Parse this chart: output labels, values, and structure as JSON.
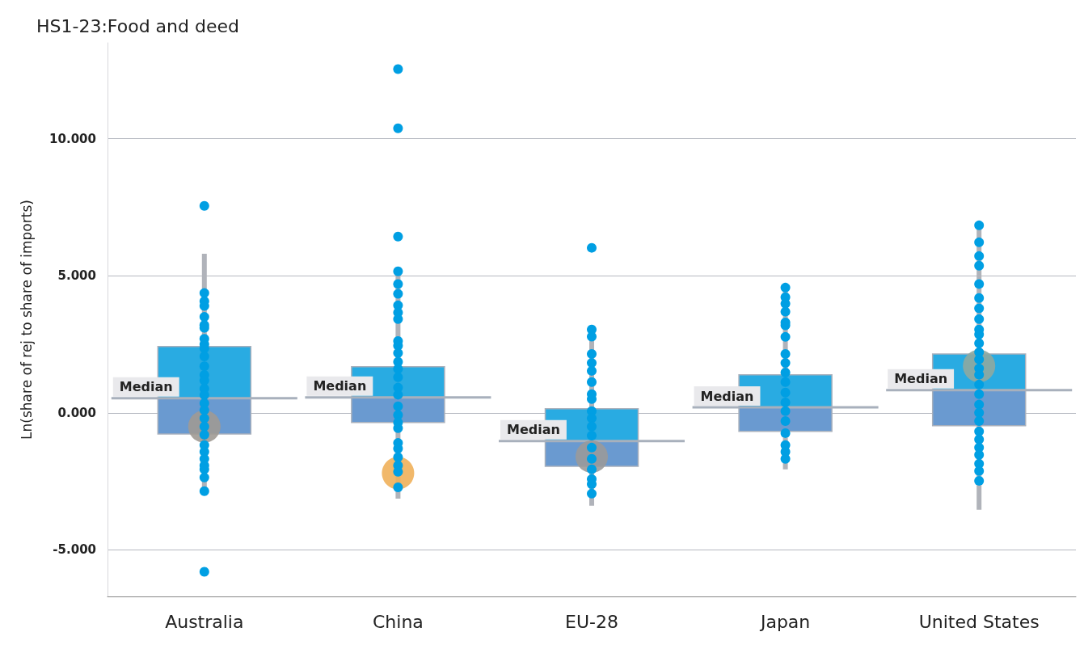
{
  "chart_data": {
    "type": "box",
    "title": "HS1-23:Food and deed",
    "ylabel": "Ln(share of rej to share of imports)",
    "categories": [
      "Australia",
      "China",
      "EU-28",
      "Japan",
      "United States"
    ],
    "boxes": [
      {
        "low": -2.86,
        "q1": -0.77,
        "median": 0.53,
        "q3": 2.42,
        "high": 5.8,
        "outliers": [
          7.55,
          -5.8
        ]
      },
      {
        "low": -3.13,
        "q1": -0.35,
        "median": 0.56,
        "q3": 1.68,
        "high": 5.16,
        "outliers": [
          12.54,
          10.38,
          6.43
        ]
      },
      {
        "low": -3.39,
        "q1": -1.95,
        "median": -1.03,
        "q3": 0.15,
        "high": 3.04,
        "outliers": [
          6.02
        ]
      },
      {
        "low": -2.06,
        "q1": -0.68,
        "median": 0.2,
        "q3": 1.39,
        "high": 4.57
      },
      {
        "low": -3.54,
        "q1": -0.47,
        "median": 0.83,
        "q3": 2.15,
        "high": 6.84
      }
    ],
    "series": [
      {
        "type": "bubble",
        "x": [
          "Australia",
          "China",
          "EU-28",
          "United States"
        ],
        "values": [
          -0.5,
          -2.2,
          -1.6,
          1.71
        ],
        "sizes": [
          1,
          1,
          1,
          1
        ],
        "colors": [
          "#a09a94",
          "#f0b05a",
          "#9a9a9a",
          "#8fa8a0"
        ]
      },
      {
        "type": "scatter",
        "color": "#009fe3",
        "x": [
          "Australia",
          "Australia",
          "Australia",
          "Australia",
          "Australia",
          "Australia",
          "Australia",
          "Australia",
          "Australia",
          "Australia",
          "Australia",
          "Australia",
          "Australia",
          "Australia",
          "Australia",
          "Australia",
          "Australia",
          "Australia",
          "Australia",
          "Australia",
          "Australia",
          "Australia",
          "Australia",
          "Australia",
          "Australia",
          "Australia",
          "Australia",
          "China",
          "China",
          "China",
          "China",
          "China",
          "China",
          "China",
          "China",
          "China",
          "China",
          "China",
          "China",
          "China",
          "China",
          "China",
          "China",
          "China",
          "China",
          "China",
          "China",
          "China",
          "China",
          "China",
          "China",
          "EU-28",
          "EU-28",
          "EU-28",
          "EU-28",
          "EU-28",
          "EU-28",
          "EU-28",
          "EU-28",
          "EU-28",
          "EU-28",
          "EU-28",
          "EU-28",
          "EU-28",
          "EU-28",
          "EU-28",
          "EU-28",
          "EU-28",
          "EU-28",
          "Japan",
          "Japan",
          "Japan",
          "Japan",
          "Japan",
          "Japan",
          "Japan",
          "Japan",
          "Japan",
          "Japan",
          "Japan",
          "Japan",
          "Japan",
          "Japan",
          "Japan",
          "Japan",
          "Japan",
          "Japan",
          "Japan",
          "United States",
          "United States",
          "United States",
          "United States",
          "United States",
          "United States",
          "United States",
          "United States",
          "United States",
          "United States",
          "United States",
          "United States",
          "United States",
          "United States",
          "United States",
          "United States",
          "United States",
          "United States",
          "United States",
          "United States",
          "United States",
          "United States",
          "United States",
          "United States",
          "United States",
          "United States",
          "United States"
        ],
        "values": [
          4.37,
          4.07,
          3.9,
          3.5,
          3.2,
          3.1,
          2.7,
          2.5,
          2.35,
          2.06,
          1.7,
          1.38,
          1.18,
          0.88,
          0.65,
          0.35,
          0.1,
          -0.2,
          -0.5,
          -0.8,
          -1.18,
          -1.42,
          -1.68,
          -1.92,
          -2.06,
          -2.36,
          -2.86,
          5.16,
          4.7,
          4.34,
          3.92,
          3.66,
          3.42,
          2.62,
          2.45,
          2.18,
          1.86,
          1.6,
          1.3,
          0.92,
          0.66,
          0.24,
          -0.08,
          -0.35,
          -0.56,
          -1.1,
          -1.3,
          -1.62,
          -1.92,
          -2.15,
          -2.72,
          3.04,
          2.78,
          2.15,
          1.82,
          1.53,
          1.12,
          0.68,
          0.5,
          0.06,
          -0.2,
          -0.5,
          -0.83,
          -1.27,
          -1.68,
          -2.06,
          -2.42,
          -2.6,
          -2.95,
          4.57,
          4.22,
          3.98,
          3.69,
          3.3,
          3.19,
          2.77,
          2.15,
          1.82,
          1.47,
          1.12,
          0.74,
          0.38,
          0.06,
          -0.3,
          -0.74,
          -1.18,
          -1.42,
          -1.68,
          6.84,
          6.22,
          5.72,
          5.37,
          4.7,
          4.19,
          3.81,
          3.42,
          3.04,
          2.86,
          2.54,
          2.21,
          1.95,
          1.62,
          1.39,
          1.03,
          0.68,
          0.3,
          0,
          -0.3,
          -0.68,
          -0.97,
          -1.27,
          -1.53,
          -1.86,
          -2.12,
          -2.48
        ]
      }
    ],
    "annotations": [
      {
        "text": "Median",
        "x": "Australia",
        "y": 0.53
      },
      {
        "text": "Median",
        "x": "China",
        "y": 0.56
      },
      {
        "text": "Median",
        "x": "EU-28",
        "y": -1.03
      },
      {
        "text": "Median",
        "x": "Japan",
        "y": 0.2
      },
      {
        "text": "Median",
        "x": "United States",
        "y": 0.83
      }
    ],
    "ylim": [
      -6.7,
      13.5
    ],
    "yticks": [
      {
        "value": -5,
        "label": "-5.000"
      },
      {
        "value": 0,
        "label": "0.000"
      },
      {
        "value": 5,
        "label": "5.000"
      },
      {
        "value": 10,
        "label": "10.000"
      }
    ],
    "grid": "y",
    "marker": "circle"
  }
}
